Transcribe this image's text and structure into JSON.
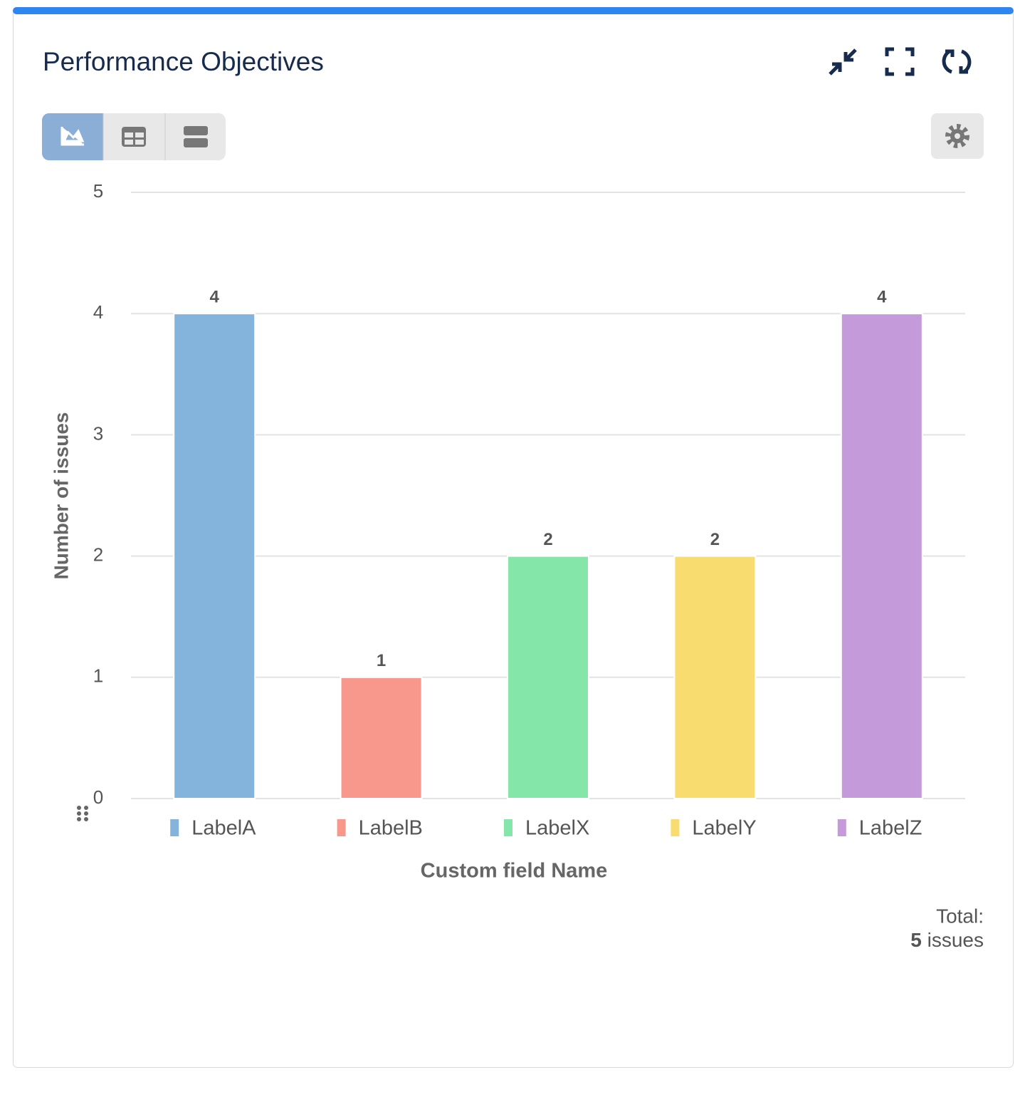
{
  "chart_data": {
    "type": "bar",
    "title": "Performance Objectives",
    "categories": [
      "LabelA",
      "LabelB",
      "LabelX",
      "LabelY",
      "LabelZ"
    ],
    "values": [
      4,
      1,
      2,
      2,
      4
    ],
    "colors": [
      "#84b3dc",
      "#f8978c",
      "#84e6a8",
      "#f8dc70",
      "#c49adb"
    ],
    "x_label": "Custom field Name",
    "y_label": "Number of issues",
    "ylim": [
      0,
      5
    ],
    "yticks": [
      0,
      1,
      2,
      3,
      4,
      5
    ],
    "grid": true
  },
  "footer": {
    "total_label": "Total:",
    "total_value": 5,
    "total_unit": "issues"
  }
}
